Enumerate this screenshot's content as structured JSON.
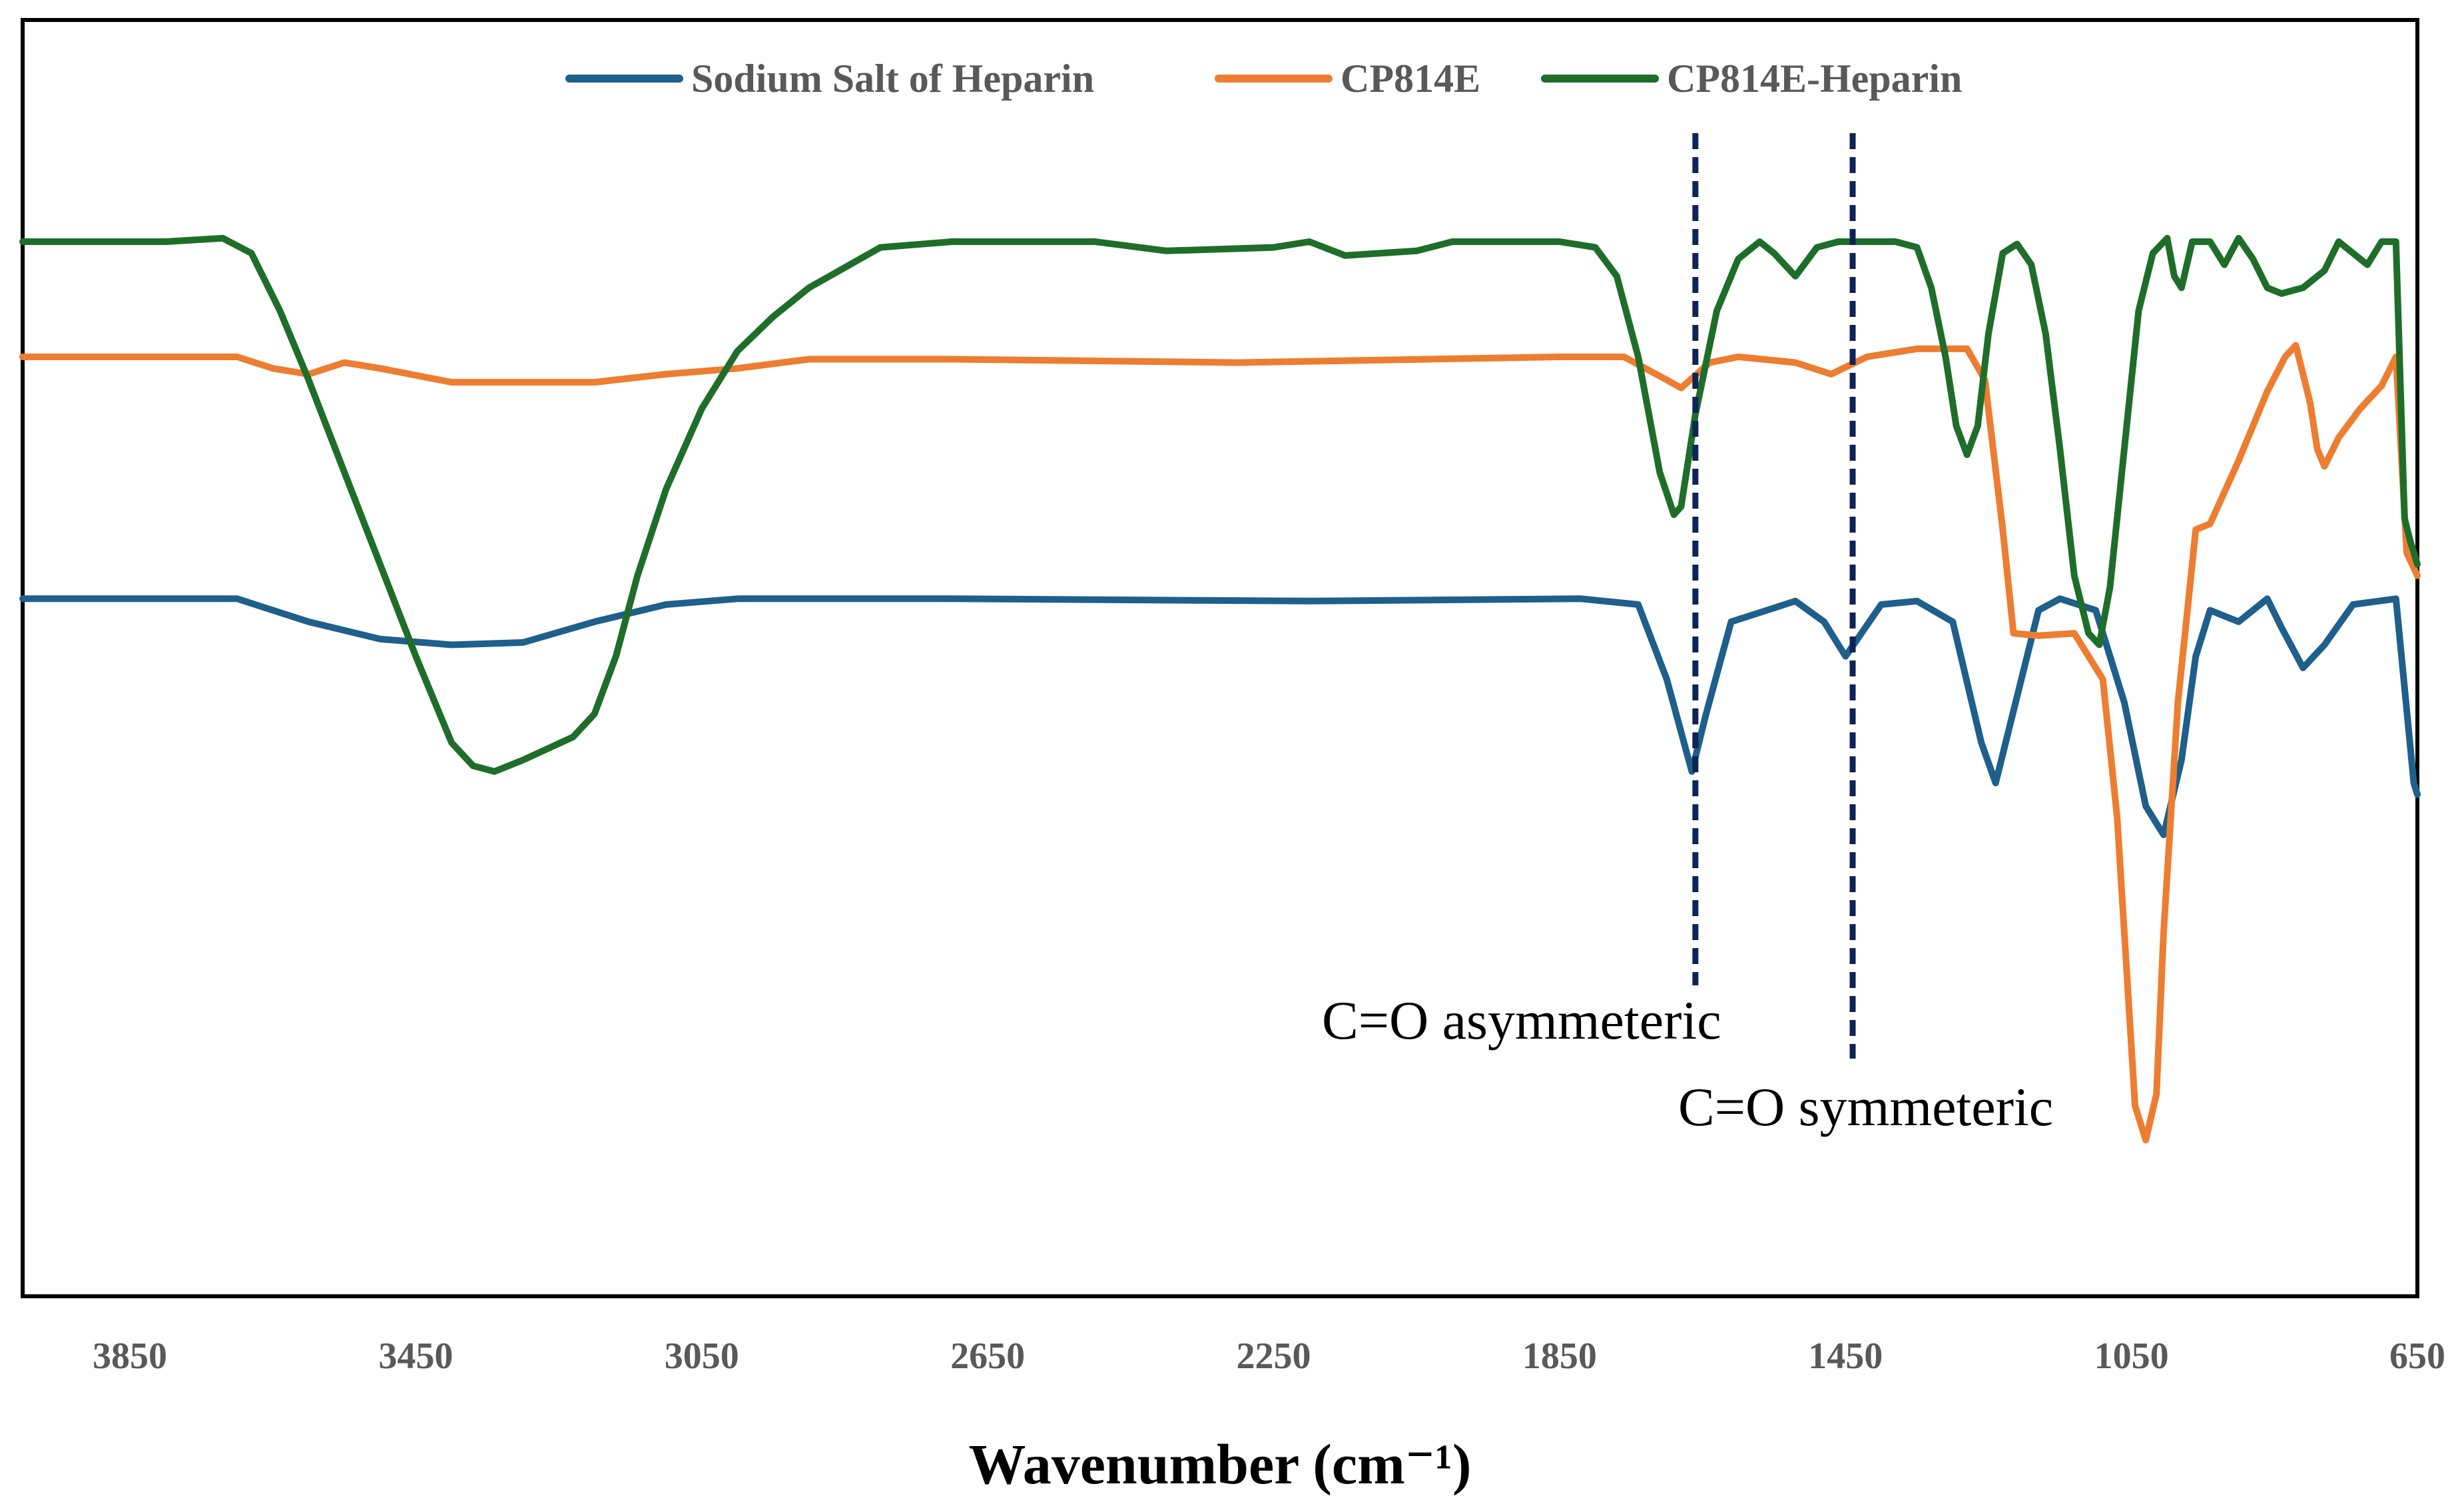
{
  "chart_data": {
    "type": "line",
    "title": "",
    "xlabel": "Wavenumber (cm⁻¹)",
    "ylabel": "",
    "xlim": [
      4000,
      650
    ],
    "x_reversed": true,
    "ylim": [
      0,
      100
    ],
    "y_axis_visible": false,
    "grid": false,
    "legend_position": "top-center",
    "x_ticks": [
      3850,
      3450,
      3050,
      2650,
      2250,
      1850,
      1450,
      1050,
      650
    ],
    "series": [
      {
        "name": "Sodium Salt of Heparin",
        "color": "#1f5f8b",
        "points": [
          [
            4000,
            59
          ],
          [
            3700,
            59
          ],
          [
            3600,
            57
          ],
          [
            3500,
            55.5
          ],
          [
            3400,
            55
          ],
          [
            3300,
            55.2
          ],
          [
            3200,
            57
          ],
          [
            3100,
            58.5
          ],
          [
            3000,
            59
          ],
          [
            2700,
            59
          ],
          [
            2200,
            58.8
          ],
          [
            1820,
            59
          ],
          [
            1740,
            58.5
          ],
          [
            1700,
            52
          ],
          [
            1665,
            44
          ],
          [
            1645,
            49
          ],
          [
            1610,
            57
          ],
          [
            1520,
            58.8
          ],
          [
            1480,
            57
          ],
          [
            1450,
            54
          ],
          [
            1400,
            58.5
          ],
          [
            1350,
            58.8
          ],
          [
            1300,
            57
          ],
          [
            1260,
            46.5
          ],
          [
            1240,
            43
          ],
          [
            1220,
            48
          ],
          [
            1180,
            58
          ],
          [
            1150,
            59
          ],
          [
            1100,
            58
          ],
          [
            1060,
            50
          ],
          [
            1030,
            41
          ],
          [
            1005,
            38.5
          ],
          [
            980,
            45
          ],
          [
            960,
            54
          ],
          [
            940,
            58
          ],
          [
            900,
            57
          ],
          [
            860,
            59
          ],
          [
            840,
            56.5
          ],
          [
            810,
            53
          ],
          [
            780,
            55
          ],
          [
            740,
            58.5
          ],
          [
            680,
            59
          ],
          [
            655,
            43
          ],
          [
            650,
            42
          ]
        ]
      },
      {
        "name": "CP814E",
        "color": "#ed7d31",
        "points": [
          [
            4000,
            80
          ],
          [
            3700,
            80
          ],
          [
            3650,
            79
          ],
          [
            3600,
            78.5
          ],
          [
            3550,
            79.5
          ],
          [
            3500,
            79
          ],
          [
            3400,
            77.8
          ],
          [
            3200,
            77.8
          ],
          [
            3100,
            78.5
          ],
          [
            3000,
            79
          ],
          [
            2900,
            79.8
          ],
          [
            2700,
            79.8
          ],
          [
            2300,
            79.5
          ],
          [
            1850,
            80
          ],
          [
            1760,
            80
          ],
          [
            1700,
            78
          ],
          [
            1680,
            77.3
          ],
          [
            1640,
            79.5
          ],
          [
            1600,
            80
          ],
          [
            1520,
            79.5
          ],
          [
            1470,
            78.5
          ],
          [
            1420,
            80
          ],
          [
            1350,
            80.7
          ],
          [
            1280,
            80.7
          ],
          [
            1255,
            78
          ],
          [
            1230,
            65
          ],
          [
            1215,
            56
          ],
          [
            1180,
            55.8
          ],
          [
            1130,
            56
          ],
          [
            1090,
            52
          ],
          [
            1070,
            40
          ],
          [
            1055,
            25
          ],
          [
            1045,
            15
          ],
          [
            1030,
            12
          ],
          [
            1015,
            16
          ],
          [
            1005,
            30
          ],
          [
            985,
            50
          ],
          [
            960,
            65
          ],
          [
            940,
            65.5
          ],
          [
            900,
            71
          ],
          [
            860,
            77
          ],
          [
            835,
            80
          ],
          [
            820,
            81
          ],
          [
            800,
            76
          ],
          [
            790,
            72
          ],
          [
            780,
            70.5
          ],
          [
            760,
            73
          ],
          [
            730,
            75.5
          ],
          [
            700,
            77.5
          ],
          [
            680,
            80
          ],
          [
            665,
            63
          ],
          [
            650,
            61
          ]
        ]
      },
      {
        "name": "CP814E-Heparin",
        "color": "#1e6e2a",
        "points": [
          [
            4000,
            90
          ],
          [
            3900,
            90
          ],
          [
            3800,
            90
          ],
          [
            3720,
            90.3
          ],
          [
            3680,
            89
          ],
          [
            3640,
            84
          ],
          [
            3600,
            78
          ],
          [
            3550,
            70
          ],
          [
            3500,
            62
          ],
          [
            3450,
            54
          ],
          [
            3400,
            46.5
          ],
          [
            3370,
            44.5
          ],
          [
            3340,
            44
          ],
          [
            3300,
            45
          ],
          [
            3230,
            47
          ],
          [
            3200,
            49
          ],
          [
            3170,
            54
          ],
          [
            3140,
            61
          ],
          [
            3100,
            68.5
          ],
          [
            3050,
            75.5
          ],
          [
            3000,
            80.5
          ],
          [
            2950,
            83.5
          ],
          [
            2900,
            86
          ],
          [
            2800,
            89.5
          ],
          [
            2700,
            90
          ],
          [
            2500,
            90
          ],
          [
            2400,
            89.2
          ],
          [
            2250,
            89.5
          ],
          [
            2200,
            90
          ],
          [
            2150,
            88.8
          ],
          [
            2050,
            89.2
          ],
          [
            2000,
            90
          ],
          [
            1850,
            90
          ],
          [
            1800,
            89.5
          ],
          [
            1770,
            87
          ],
          [
            1740,
            80
          ],
          [
            1710,
            70
          ],
          [
            1690,
            66.3
          ],
          [
            1680,
            67
          ],
          [
            1660,
            75
          ],
          [
            1630,
            84
          ],
          [
            1600,
            88.5
          ],
          [
            1570,
            90
          ],
          [
            1550,
            89
          ],
          [
            1520,
            87
          ],
          [
            1490,
            89.5
          ],
          [
            1460,
            90
          ],
          [
            1420,
            90
          ],
          [
            1380,
            90
          ],
          [
            1350,
            89.5
          ],
          [
            1330,
            86
          ],
          [
            1310,
            80
          ],
          [
            1295,
            74
          ],
          [
            1280,
            71.5
          ],
          [
            1265,
            74
          ],
          [
            1250,
            82
          ],
          [
            1230,
            89
          ],
          [
            1210,
            89.8
          ],
          [
            1190,
            88
          ],
          [
            1170,
            82
          ],
          [
            1150,
            72
          ],
          [
            1130,
            61
          ],
          [
            1110,
            56
          ],
          [
            1095,
            55
          ],
          [
            1080,
            60
          ],
          [
            1060,
            72
          ],
          [
            1040,
            84
          ],
          [
            1020,
            89
          ],
          [
            1000,
            90.3
          ],
          [
            990,
            87
          ],
          [
            980,
            86
          ],
          [
            965,
            90
          ],
          [
            940,
            90
          ],
          [
            920,
            88
          ],
          [
            900,
            90.3
          ],
          [
            880,
            88.5
          ],
          [
            860,
            86
          ],
          [
            840,
            85.5
          ],
          [
            810,
            86
          ],
          [
            780,
            87.5
          ],
          [
            760,
            90
          ],
          [
            740,
            89
          ],
          [
            720,
            88
          ],
          [
            700,
            90
          ],
          [
            680,
            90
          ],
          [
            668,
            66
          ],
          [
            660,
            64
          ],
          [
            650,
            62
          ]
        ]
      }
    ],
    "annotations": [
      {
        "label": "C=O asymmeteric",
        "x": 1660,
        "dashed_line": true
      },
      {
        "label": "C=O symmeteric",
        "x": 1440,
        "dashed_line": true
      }
    ]
  }
}
